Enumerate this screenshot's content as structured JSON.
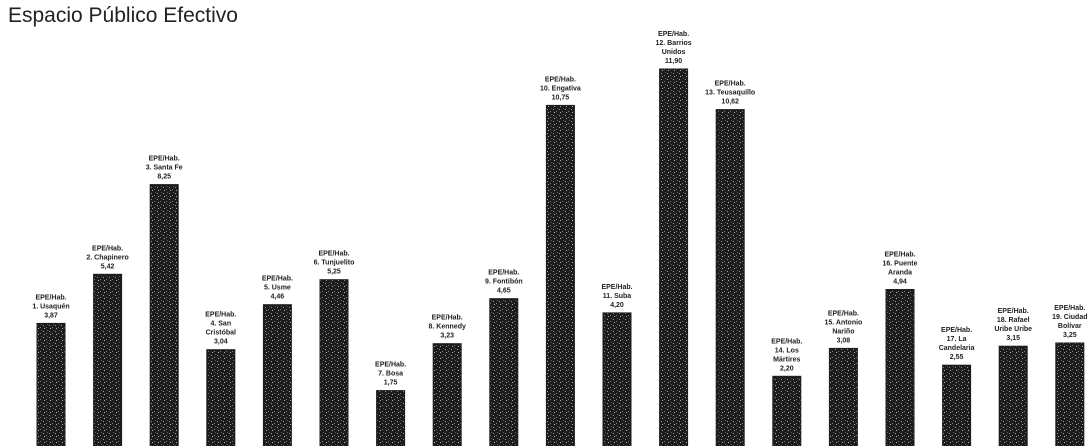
{
  "title": "Espacio Público Efectivo",
  "colors": {
    "bar": "#1c1c1c",
    "bar_texture": "#8a8a8a",
    "text": "#222222"
  },
  "chart_data": {
    "type": "bar",
    "title": "Espacio Público Efectivo",
    "xlabel": "",
    "ylabel": "",
    "ylim": [
      0,
      12.5
    ],
    "grid": false,
    "unit_label": "EPE/Hab.",
    "categories": [
      "1. Usaquén",
      "2. Chapinero",
      "3. Santa Fe",
      "4. San Cristóbal",
      "5. Usme",
      "6. Tunjuelito",
      "7. Bosa",
      "8. Kennedy",
      "9. Fontibón",
      "10. Engativa",
      "11. Suba",
      "12. Barrios Unidos",
      "13. Teusaquillo",
      "14. Los Mártires",
      "15. Antonio Nariño",
      "16. Puente Aranda",
      "17. La Candelaria",
      "18. Rafael Uribe Uribe",
      "19. Ciudad Bolívar"
    ],
    "values": [
      3.87,
      5.42,
      8.25,
      3.04,
      4.46,
      5.25,
      1.75,
      3.23,
      4.65,
      10.75,
      4.2,
      11.9,
      10.62,
      2.2,
      3.08,
      4.94,
      2.55,
      3.15,
      3.25
    ],
    "value_labels": [
      "3,87",
      "5,42",
      "8,25",
      "3,04",
      "4,46",
      "5,25",
      "1,75",
      "3,23",
      "4,65",
      "10,75",
      "4,20",
      "11,90",
      "10,62",
      "2,20",
      "3,08",
      "4,94",
      "2,55",
      "3,15",
      "3,25"
    ]
  }
}
